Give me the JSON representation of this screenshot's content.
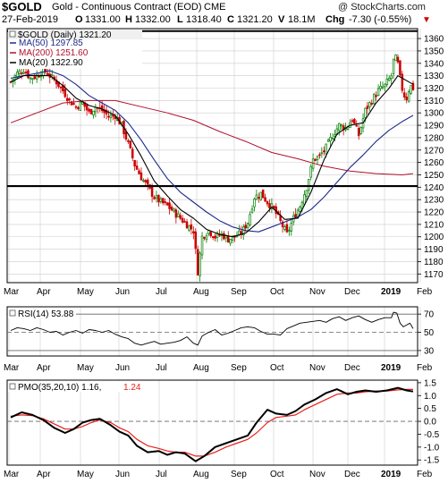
{
  "header": {
    "symbol": "$GOLD",
    "name": "Gold - Continuous Contract (EOD)",
    "exchange": "CME",
    "date": "27-Feb-2019",
    "open_label": "O",
    "open": "1331.00",
    "high_label": "H",
    "high": "1332.00",
    "low_label": "L",
    "low": "1318.40",
    "close_label": "C",
    "close": "1321.20",
    "volume_label": "V",
    "volume": "18.1M",
    "change_label": "Chg",
    "change": "-7.30 (-0.55%)",
    "change_arrow": "▼",
    "watermark": "@ StockCharts.com"
  },
  "colors": {
    "up": "#008000",
    "down": "#cc0000",
    "ma50": "#1f2a8a",
    "ma200": "#b0102a",
    "ma20": "#000000",
    "pmo_signal": "#e8201c",
    "grid": "#cccccc"
  },
  "chart_data": [
    {
      "type": "candlestick",
      "title": "$GOLD (Daily) 1321.20",
      "legend": [
        {
          "name": "MA(50) 1297.85",
          "color": "#1f2a8a"
        },
        {
          "name": "MA(200) 1251.60",
          "color": "#b0102a"
        },
        {
          "name": "MA(20) 1322.90",
          "color": "#000000"
        }
      ],
      "months": [
        "Mar",
        "Apr",
        "May",
        "Jun",
        "Jul",
        "Aug",
        "Sep",
        "Oct",
        "Nov",
        "Dec",
        "2019",
        "Feb"
      ],
      "ylim": [
        1163,
        1368
      ],
      "yticks": [
        1170,
        1180,
        1190,
        1200,
        1210,
        1220,
        1230,
        1240,
        1250,
        1260,
        1270,
        1280,
        1290,
        1300,
        1310,
        1320,
        1330,
        1340,
        1350,
        1360
      ],
      "horizontal_lines": [
        1366,
        1241
      ],
      "close_path": [
        [
          0,
          1325
        ],
        [
          6,
          1332
        ],
        [
          12,
          1335
        ],
        [
          18,
          1328
        ],
        [
          24,
          1330
        ],
        [
          30,
          1335
        ],
        [
          36,
          1330
        ],
        [
          42,
          1325
        ],
        [
          48,
          1318
        ],
        [
          54,
          1310
        ],
        [
          60,
          1305
        ],
        [
          66,
          1308
        ],
        [
          72,
          1300
        ],
        [
          78,
          1305
        ],
        [
          84,
          1302
        ],
        [
          90,
          1297
        ],
        [
          96,
          1298
        ],
        [
          102,
          1290
        ],
        [
          108,
          1275
        ],
        [
          114,
          1258
        ],
        [
          120,
          1248
        ],
        [
          126,
          1240
        ],
        [
          132,
          1232
        ],
        [
          138,
          1228
        ],
        [
          144,
          1225
        ],
        [
          150,
          1220
        ],
        [
          156,
          1215
        ],
        [
          162,
          1210
        ],
        [
          168,
          1205
        ],
        [
          172,
          1172
        ],
        [
          176,
          1200
        ],
        [
          182,
          1205
        ],
        [
          188,
          1200
        ],
        [
          194,
          1202
        ],
        [
          200,
          1198
        ],
        [
          206,
          1200
        ],
        [
          212,
          1203
        ],
        [
          218,
          1212
        ],
        [
          224,
          1232
        ],
        [
          230,
          1235
        ],
        [
          236,
          1228
        ],
        [
          242,
          1222
        ],
        [
          248,
          1212
        ],
        [
          254,
          1202
        ],
        [
          260,
          1215
        ],
        [
          266,
          1225
        ],
        [
          272,
          1240
        ],
        [
          278,
          1262
        ],
        [
          284,
          1265
        ],
        [
          290,
          1272
        ],
        [
          296,
          1282
        ],
        [
          302,
          1290
        ],
        [
          308,
          1288
        ],
        [
          314,
          1295
        ],
        [
          320,
          1282
        ],
        [
          326,
          1302
        ],
        [
          332,
          1310
        ],
        [
          338,
          1318
        ],
        [
          344,
          1322
        ],
        [
          350,
          1330
        ],
        [
          352,
          1342
        ],
        [
          355,
          1345
        ],
        [
          358,
          1328
        ],
        [
          361,
          1315
        ],
        [
          364,
          1312
        ],
        [
          367,
          1322
        ],
        [
          370,
          1320
        ]
      ],
      "ma20": [
        [
          0,
          1325
        ],
        [
          12,
          1330
        ],
        [
          24,
          1330
        ],
        [
          36,
          1330
        ],
        [
          48,
          1322
        ],
        [
          60,
          1312
        ],
        [
          72,
          1306
        ],
        [
          84,
          1303
        ],
        [
          96,
          1298
        ],
        [
          108,
          1283
        ],
        [
          120,
          1265
        ],
        [
          132,
          1245
        ],
        [
          144,
          1233
        ],
        [
          156,
          1222
        ],
        [
          168,
          1215
        ],
        [
          180,
          1206
        ],
        [
          192,
          1202
        ],
        [
          204,
          1200
        ],
        [
          216,
          1203
        ],
        [
          228,
          1212
        ],
        [
          240,
          1224
        ],
        [
          252,
          1214
        ],
        [
          264,
          1215
        ],
        [
          276,
          1236
        ],
        [
          288,
          1262
        ],
        [
          300,
          1283
        ],
        [
          312,
          1290
        ],
        [
          324,
          1292
        ],
        [
          336,
          1308
        ],
        [
          348,
          1320
        ],
        [
          356,
          1330
        ],
        [
          370,
          1323
        ]
      ],
      "ma50": [
        [
          0,
          1328
        ],
        [
          12,
          1330
        ],
        [
          24,
          1332
        ],
        [
          36,
          1334
        ],
        [
          48,
          1330
        ],
        [
          60,
          1323
        ],
        [
          72,
          1314
        ],
        [
          84,
          1308
        ],
        [
          96,
          1302
        ],
        [
          108,
          1292
        ],
        [
          120,
          1278
        ],
        [
          132,
          1262
        ],
        [
          144,
          1247
        ],
        [
          156,
          1236
        ],
        [
          168,
          1228
        ],
        [
          180,
          1220
        ],
        [
          192,
          1213
        ],
        [
          204,
          1208
        ],
        [
          216,
          1205
        ],
        [
          228,
          1204
        ],
        [
          240,
          1208
        ],
        [
          252,
          1212
        ],
        [
          264,
          1216
        ],
        [
          276,
          1222
        ],
        [
          288,
          1232
        ],
        [
          300,
          1244
        ],
        [
          312,
          1256
        ],
        [
          324,
          1266
        ],
        [
          336,
          1277
        ],
        [
          348,
          1286
        ],
        [
          360,
          1293
        ],
        [
          370,
          1298
        ]
      ],
      "ma200": [
        [
          0,
          1292
        ],
        [
          24,
          1300
        ],
        [
          48,
          1308
        ],
        [
          72,
          1310
        ],
        [
          96,
          1310
        ],
        [
          120,
          1305
        ],
        [
          144,
          1300
        ],
        [
          168,
          1294
        ],
        [
          192,
          1285
        ],
        [
          216,
          1277
        ],
        [
          240,
          1268
        ],
        [
          264,
          1263
        ],
        [
          288,
          1257
        ],
        [
          312,
          1253
        ],
        [
          336,
          1251
        ],
        [
          360,
          1250
        ],
        [
          370,
          1251
        ]
      ]
    },
    {
      "type": "line",
      "title": "RSI(14) 53.88",
      "ylim": [
        24,
        78
      ],
      "yticks": [
        30,
        50,
        70
      ],
      "reference_lines": [
        70,
        30
      ],
      "midline": 50,
      "values": [
        [
          0,
          52
        ],
        [
          6,
          55
        ],
        [
          12,
          54
        ],
        [
          18,
          52
        ],
        [
          24,
          55
        ],
        [
          30,
          53
        ],
        [
          36,
          50
        ],
        [
          42,
          51
        ],
        [
          48,
          47
        ],
        [
          54,
          50
        ],
        [
          60,
          52
        ],
        [
          66,
          49
        ],
        [
          72,
          53
        ],
        [
          78,
          52
        ],
        [
          84,
          50
        ],
        [
          90,
          52
        ],
        [
          96,
          48
        ],
        [
          102,
          45
        ],
        [
          108,
          43
        ],
        [
          114,
          38
        ],
        [
          120,
          36
        ],
        [
          126,
          38
        ],
        [
          132,
          40
        ],
        [
          138,
          37
        ],
        [
          144,
          38
        ],
        [
          150,
          39
        ],
        [
          156,
          41
        ],
        [
          162,
          45
        ],
        [
          168,
          38
        ],
        [
          172,
          36
        ],
        [
          176,
          46
        ],
        [
          182,
          50
        ],
        [
          188,
          53
        ],
        [
          194,
          47
        ],
        [
          200,
          49
        ],
        [
          206,
          52
        ],
        [
          212,
          55
        ],
        [
          218,
          56
        ],
        [
          224,
          55
        ],
        [
          230,
          51
        ],
        [
          236,
          48
        ],
        [
          242,
          48
        ],
        [
          248,
          47
        ],
        [
          254,
          54
        ],
        [
          260,
          57
        ],
        [
          266,
          60
        ],
        [
          272,
          61
        ],
        [
          278,
          62
        ],
        [
          284,
          63
        ],
        [
          290,
          61
        ],
        [
          296,
          65
        ],
        [
          302,
          67
        ],
        [
          308,
          63
        ],
        [
          314,
          66
        ],
        [
          320,
          68
        ],
        [
          326,
          64
        ],
        [
          332,
          61
        ],
        [
          338,
          64
        ],
        [
          344,
          66
        ],
        [
          350,
          66
        ],
        [
          352,
          72
        ],
        [
          355,
          71
        ],
        [
          358,
          60
        ],
        [
          361,
          56
        ],
        [
          364,
          58
        ],
        [
          367,
          60
        ],
        [
          370,
          54
        ]
      ]
    },
    {
      "type": "line",
      "title": "PMO(35,20,10) 1.16, 1.24",
      "legend": [
        {
          "name": "PMO(35,20,10) 1.16",
          "color": "#000000"
        },
        {
          "name": "1.24",
          "color": "#e8201c"
        }
      ],
      "ylim": [
        -1.7,
        1.6
      ],
      "yticks": [
        -1.5,
        -1.0,
        -0.5,
        0.0,
        0.5,
        1.0,
        1.5
      ],
      "zero_line": 0.0,
      "pmo": [
        [
          0,
          0.15
        ],
        [
          10,
          0.35
        ],
        [
          20,
          0.25
        ],
        [
          30,
          0.05
        ],
        [
          40,
          -0.25
        ],
        [
          50,
          -0.45
        ],
        [
          58,
          -0.3
        ],
        [
          66,
          -0.05
        ],
        [
          74,
          0.05
        ],
        [
          82,
          0.1
        ],
        [
          92,
          -0.15
        ],
        [
          100,
          -0.4
        ],
        [
          108,
          -0.55
        ],
        [
          116,
          -0.95
        ],
        [
          126,
          -1.2
        ],
        [
          136,
          -1.15
        ],
        [
          144,
          -1.3
        ],
        [
          152,
          -1.2
        ],
        [
          160,
          -1.25
        ],
        [
          170,
          -1.55
        ],
        [
          178,
          -1.35
        ],
        [
          188,
          -1.0
        ],
        [
          198,
          -0.85
        ],
        [
          208,
          -0.7
        ],
        [
          218,
          -0.55
        ],
        [
          226,
          -0.05
        ],
        [
          236,
          0.45
        ],
        [
          244,
          0.3
        ],
        [
          254,
          0.25
        ],
        [
          262,
          0.4
        ],
        [
          270,
          0.65
        ],
        [
          280,
          0.85
        ],
        [
          290,
          1.1
        ],
        [
          300,
          1.25
        ],
        [
          310,
          1.05
        ],
        [
          318,
          1.15
        ],
        [
          326,
          1.2
        ],
        [
          336,
          1.15
        ],
        [
          346,
          1.2
        ],
        [
          356,
          1.3
        ],
        [
          364,
          1.2
        ],
        [
          370,
          1.16
        ]
      ],
      "signal": [
        [
          0,
          0.2
        ],
        [
          10,
          0.25
        ],
        [
          20,
          0.22
        ],
        [
          30,
          0.1
        ],
        [
          40,
          -0.1
        ],
        [
          50,
          -0.3
        ],
        [
          58,
          -0.3
        ],
        [
          66,
          -0.2
        ],
        [
          74,
          -0.05
        ],
        [
          82,
          0.05
        ],
        [
          92,
          -0.05
        ],
        [
          100,
          -0.25
        ],
        [
          108,
          -0.4
        ],
        [
          116,
          -0.7
        ],
        [
          126,
          -0.95
        ],
        [
          136,
          -1.05
        ],
        [
          144,
          -1.15
        ],
        [
          152,
          -1.2
        ],
        [
          160,
          -1.2
        ],
        [
          170,
          -1.35
        ],
        [
          178,
          -1.35
        ],
        [
          188,
          -1.2
        ],
        [
          198,
          -1.0
        ],
        [
          208,
          -0.85
        ],
        [
          218,
          -0.7
        ],
        [
          226,
          -0.45
        ],
        [
          236,
          -0.05
        ],
        [
          244,
          0.15
        ],
        [
          254,
          0.2
        ],
        [
          262,
          0.25
        ],
        [
          270,
          0.45
        ],
        [
          280,
          0.65
        ],
        [
          290,
          0.85
        ],
        [
          300,
          1.05
        ],
        [
          310,
          1.1
        ],
        [
          318,
          1.1
        ],
        [
          326,
          1.15
        ],
        [
          336,
          1.18
        ],
        [
          346,
          1.18
        ],
        [
          356,
          1.22
        ],
        [
          364,
          1.24
        ],
        [
          370,
          1.24
        ]
      ]
    }
  ]
}
